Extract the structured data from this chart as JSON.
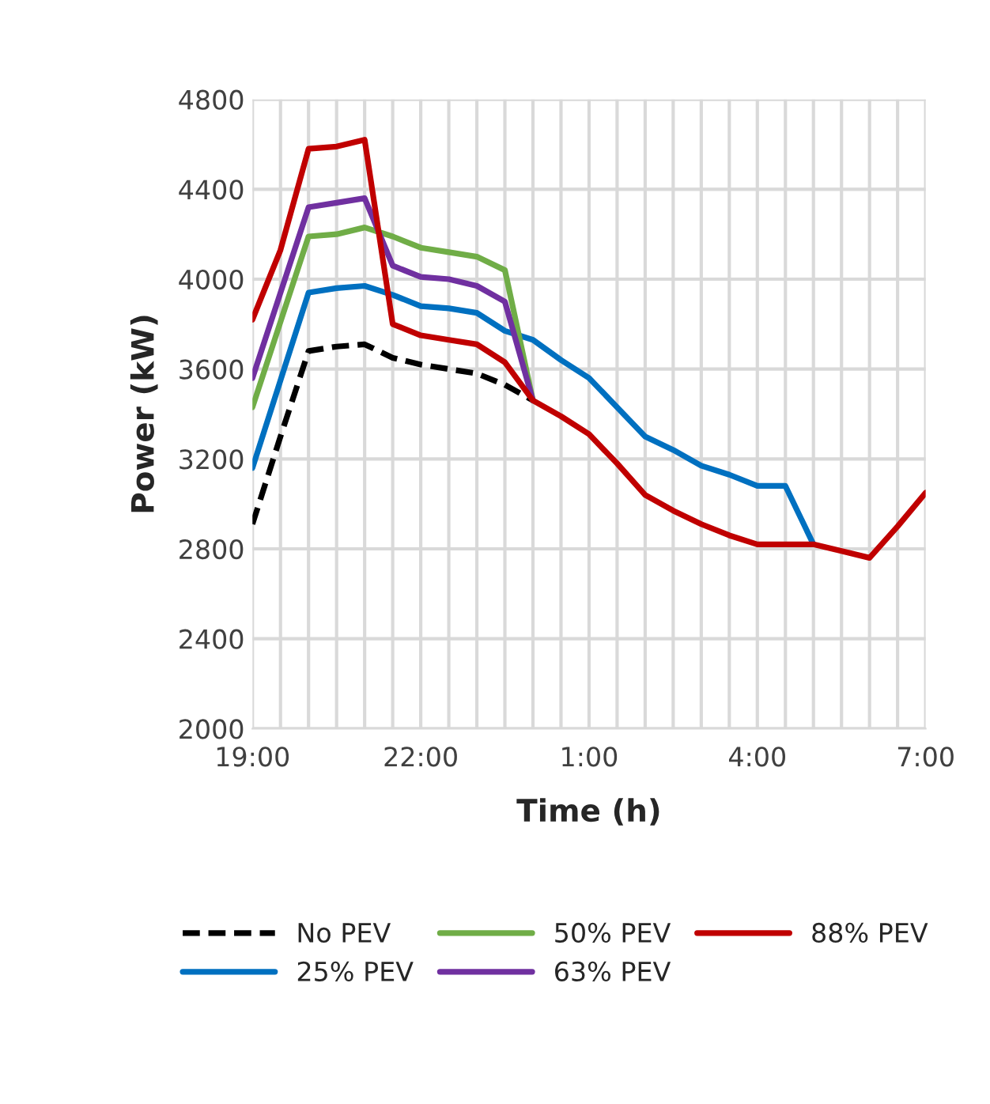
{
  "chart_data": {
    "type": "line",
    "xlabel": "Time (h)",
    "ylabel": "Power (kW)",
    "categories": [
      "19:00",
      null,
      null,
      null,
      null,
      null,
      "22:00",
      null,
      null,
      null,
      null,
      null,
      "1:00",
      null,
      null,
      null,
      null,
      null,
      "4:00",
      null,
      null,
      null,
      null,
      null,
      "7:00"
    ],
    "ylim": [
      2000,
      4800
    ],
    "yticks": [
      2000,
      2400,
      2800,
      3200,
      3600,
      4000,
      4400,
      4800
    ],
    "grid": true,
    "legend": "bottom",
    "series": [
      {
        "name": "No PEV",
        "color": "#000000",
        "line_style": "dashed",
        "values": [
          2910,
          3300,
          3680,
          3700,
          3710,
          3650,
          3620,
          3600,
          3580,
          3530,
          3460,
          null,
          null,
          null,
          null,
          null,
          null,
          null,
          null,
          null,
          null,
          null,
          null,
          null,
          null
        ]
      },
      {
        "name": "25% PEV",
        "color": "#0070c0",
        "line_style": "solid",
        "values": [
          3160,
          3550,
          3940,
          3960,
          3970,
          3930,
          3880,
          3870,
          3850,
          3770,
          3730,
          3640,
          3560,
          3430,
          3300,
          3240,
          3170,
          3130,
          3080,
          3080,
          2820,
          null,
          null,
          null,
          null
        ]
      },
      {
        "name": "50% PEV",
        "color": "#70ad47",
        "line_style": "solid",
        "values": [
          3430,
          3810,
          4190,
          4200,
          4230,
          4190,
          4140,
          4120,
          4100,
          4040,
          3460,
          null,
          null,
          null,
          null,
          null,
          null,
          null,
          null,
          null,
          null,
          null,
          null,
          null,
          null
        ]
      },
      {
        "name": "63% PEV",
        "color": "#7030a0",
        "line_style": "solid",
        "values": [
          3560,
          3940,
          4320,
          4340,
          4360,
          4060,
          4010,
          4000,
          3970,
          3900,
          3460,
          null,
          null,
          null,
          null,
          null,
          null,
          null,
          null,
          null,
          null,
          null,
          null,
          null,
          null
        ]
      },
      {
        "name": "88% PEV",
        "color": "#c00000",
        "line_style": "solid",
        "values": [
          3820,
          4130,
          4580,
          4590,
          4620,
          3800,
          3750,
          3730,
          3710,
          3630,
          3460,
          3390,
          3310,
          3180,
          3040,
          2970,
          2910,
          2860,
          2820,
          2820,
          2820,
          2790,
          2760,
          2900,
          3050
        ]
      }
    ]
  }
}
